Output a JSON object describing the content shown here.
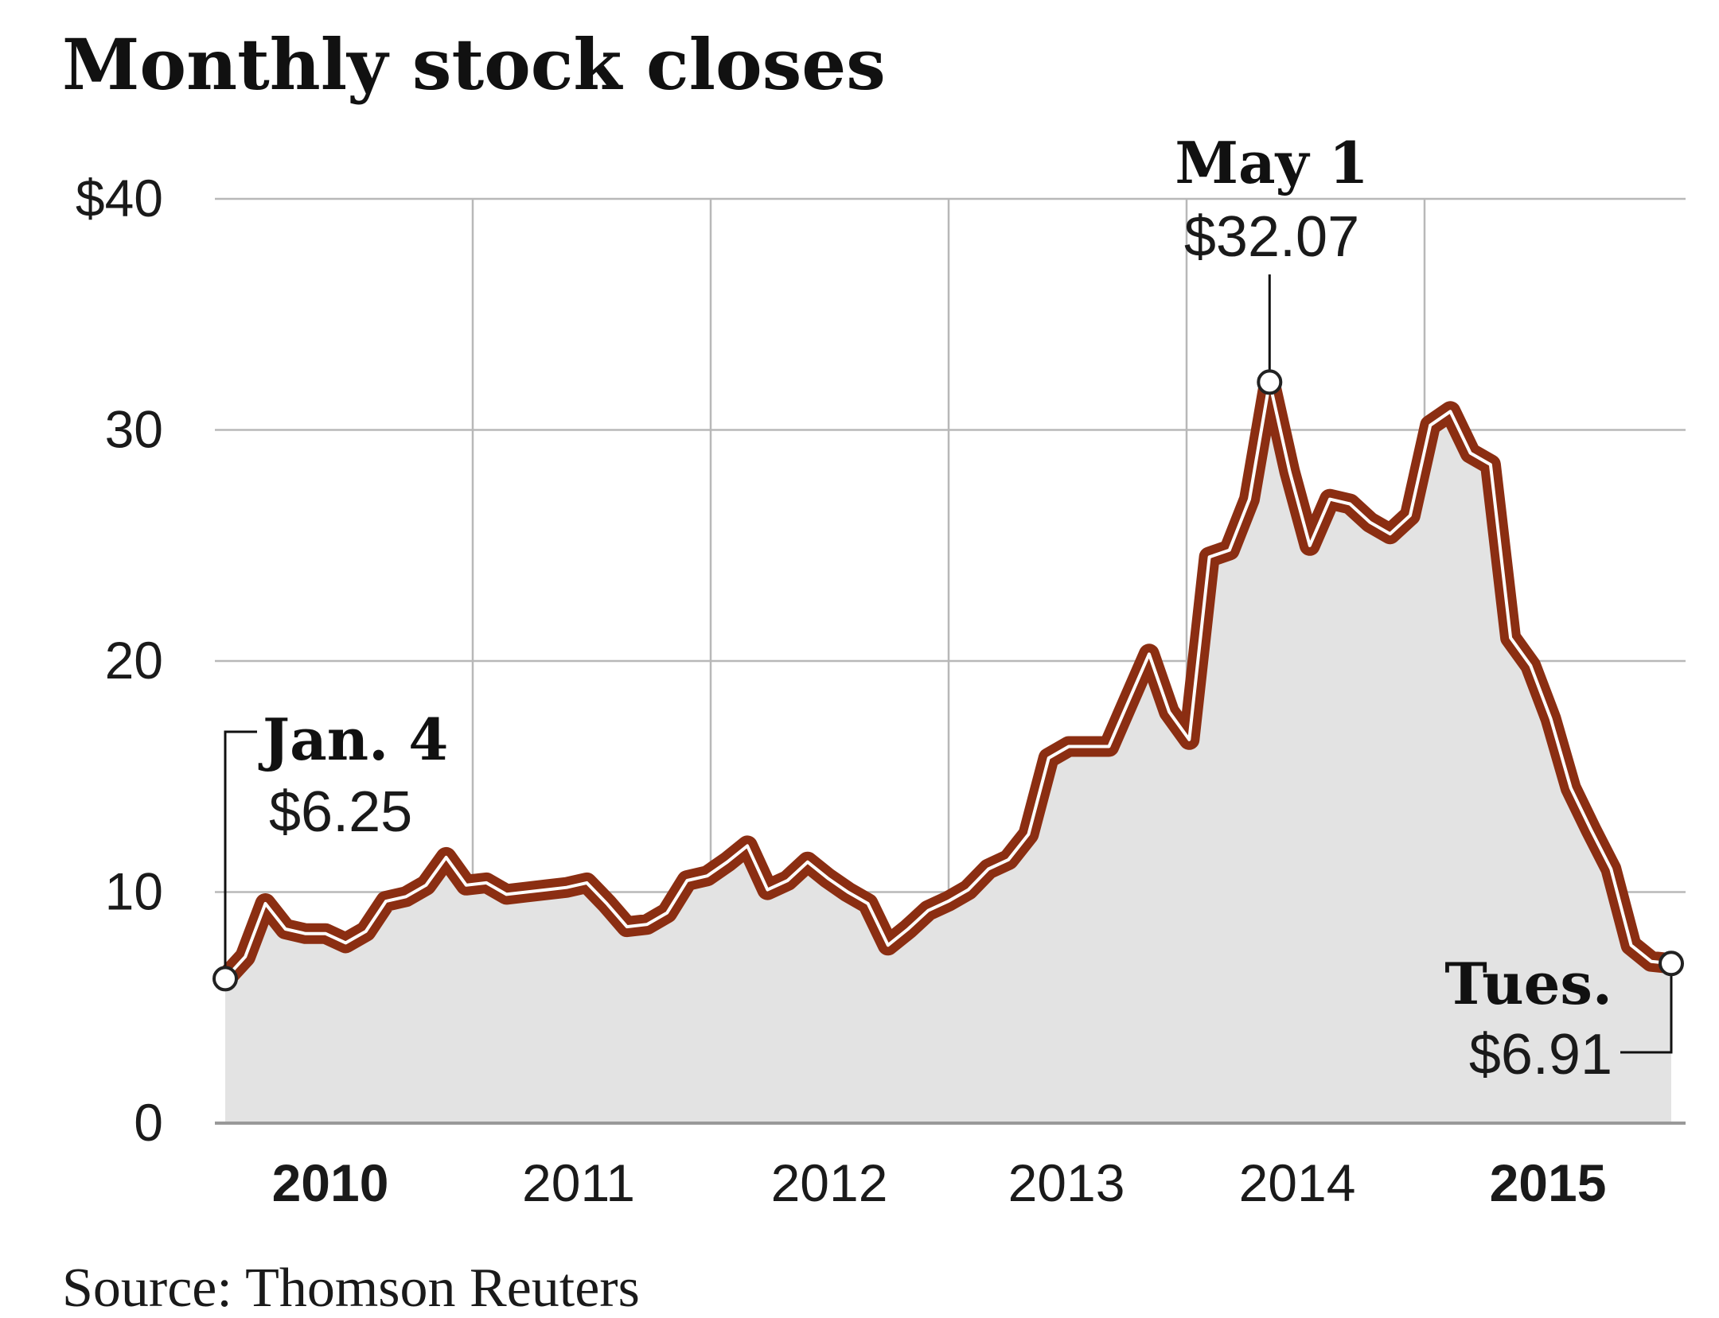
{
  "chart_data": {
    "type": "line",
    "title": "Monthly stock closes",
    "source": "Source: Thomson Reuters",
    "ylim": [
      0,
      40
    ],
    "y_ticks": [
      {
        "value": 0,
        "label": "0"
      },
      {
        "value": 10,
        "label": "10"
      },
      {
        "value": 20,
        "label": "20"
      },
      {
        "value": 30,
        "label": "30"
      },
      {
        "value": 40,
        "label": "$40"
      }
    ],
    "x_ticks": [
      {
        "label": "2010",
        "bold": true
      },
      {
        "label": "2011",
        "bold": false
      },
      {
        "label": "2012",
        "bold": false
      },
      {
        "label": "2013",
        "bold": false
      },
      {
        "label": "2014",
        "bold": false
      },
      {
        "label": "2015",
        "bold": true
      }
    ],
    "grid": true,
    "series": [
      {
        "values": [
          6.25,
          7.2,
          9.5,
          8.4,
          8.2,
          8.2,
          7.8,
          8.3,
          9.6,
          9.8,
          10.3,
          11.5,
          10.3,
          10.4,
          9.9,
          10.0,
          10.1,
          10.2,
          10.4,
          9.5,
          8.5,
          8.6,
          9.1,
          10.5,
          10.7,
          11.3,
          12.0,
          10.1,
          10.5,
          11.3,
          10.6,
          10.0,
          9.5,
          7.7,
          8.4,
          9.2,
          9.6,
          10.1,
          11.0,
          11.4,
          12.5,
          15.8,
          16.3,
          16.3,
          16.3,
          18.3,
          20.3,
          17.8,
          16.6,
          24.5,
          24.8,
          27.0,
          32.07,
          28.2,
          25.0,
          27.0,
          26.8,
          26.0,
          25.5,
          26.3,
          30.2,
          30.8,
          29.0,
          28.5,
          21.0,
          19.8,
          17.5,
          14.5,
          12.7,
          11.0,
          7.7,
          7.0,
          6.91
        ]
      }
    ],
    "annotations": [
      {
        "label": "Jan. 4",
        "value": "$6.25",
        "index": 0
      },
      {
        "label": "May 1",
        "value": "$32.07",
        "index": 52
      },
      {
        "label": "Tues.",
        "value": "$6.91",
        "index": 72
      }
    ],
    "colors": {
      "line": "#8b2e12",
      "line_highlight": "#ffffff",
      "area": "#e3e3e3",
      "grid": "#b8b8b8",
      "axis": "#999999"
    }
  }
}
